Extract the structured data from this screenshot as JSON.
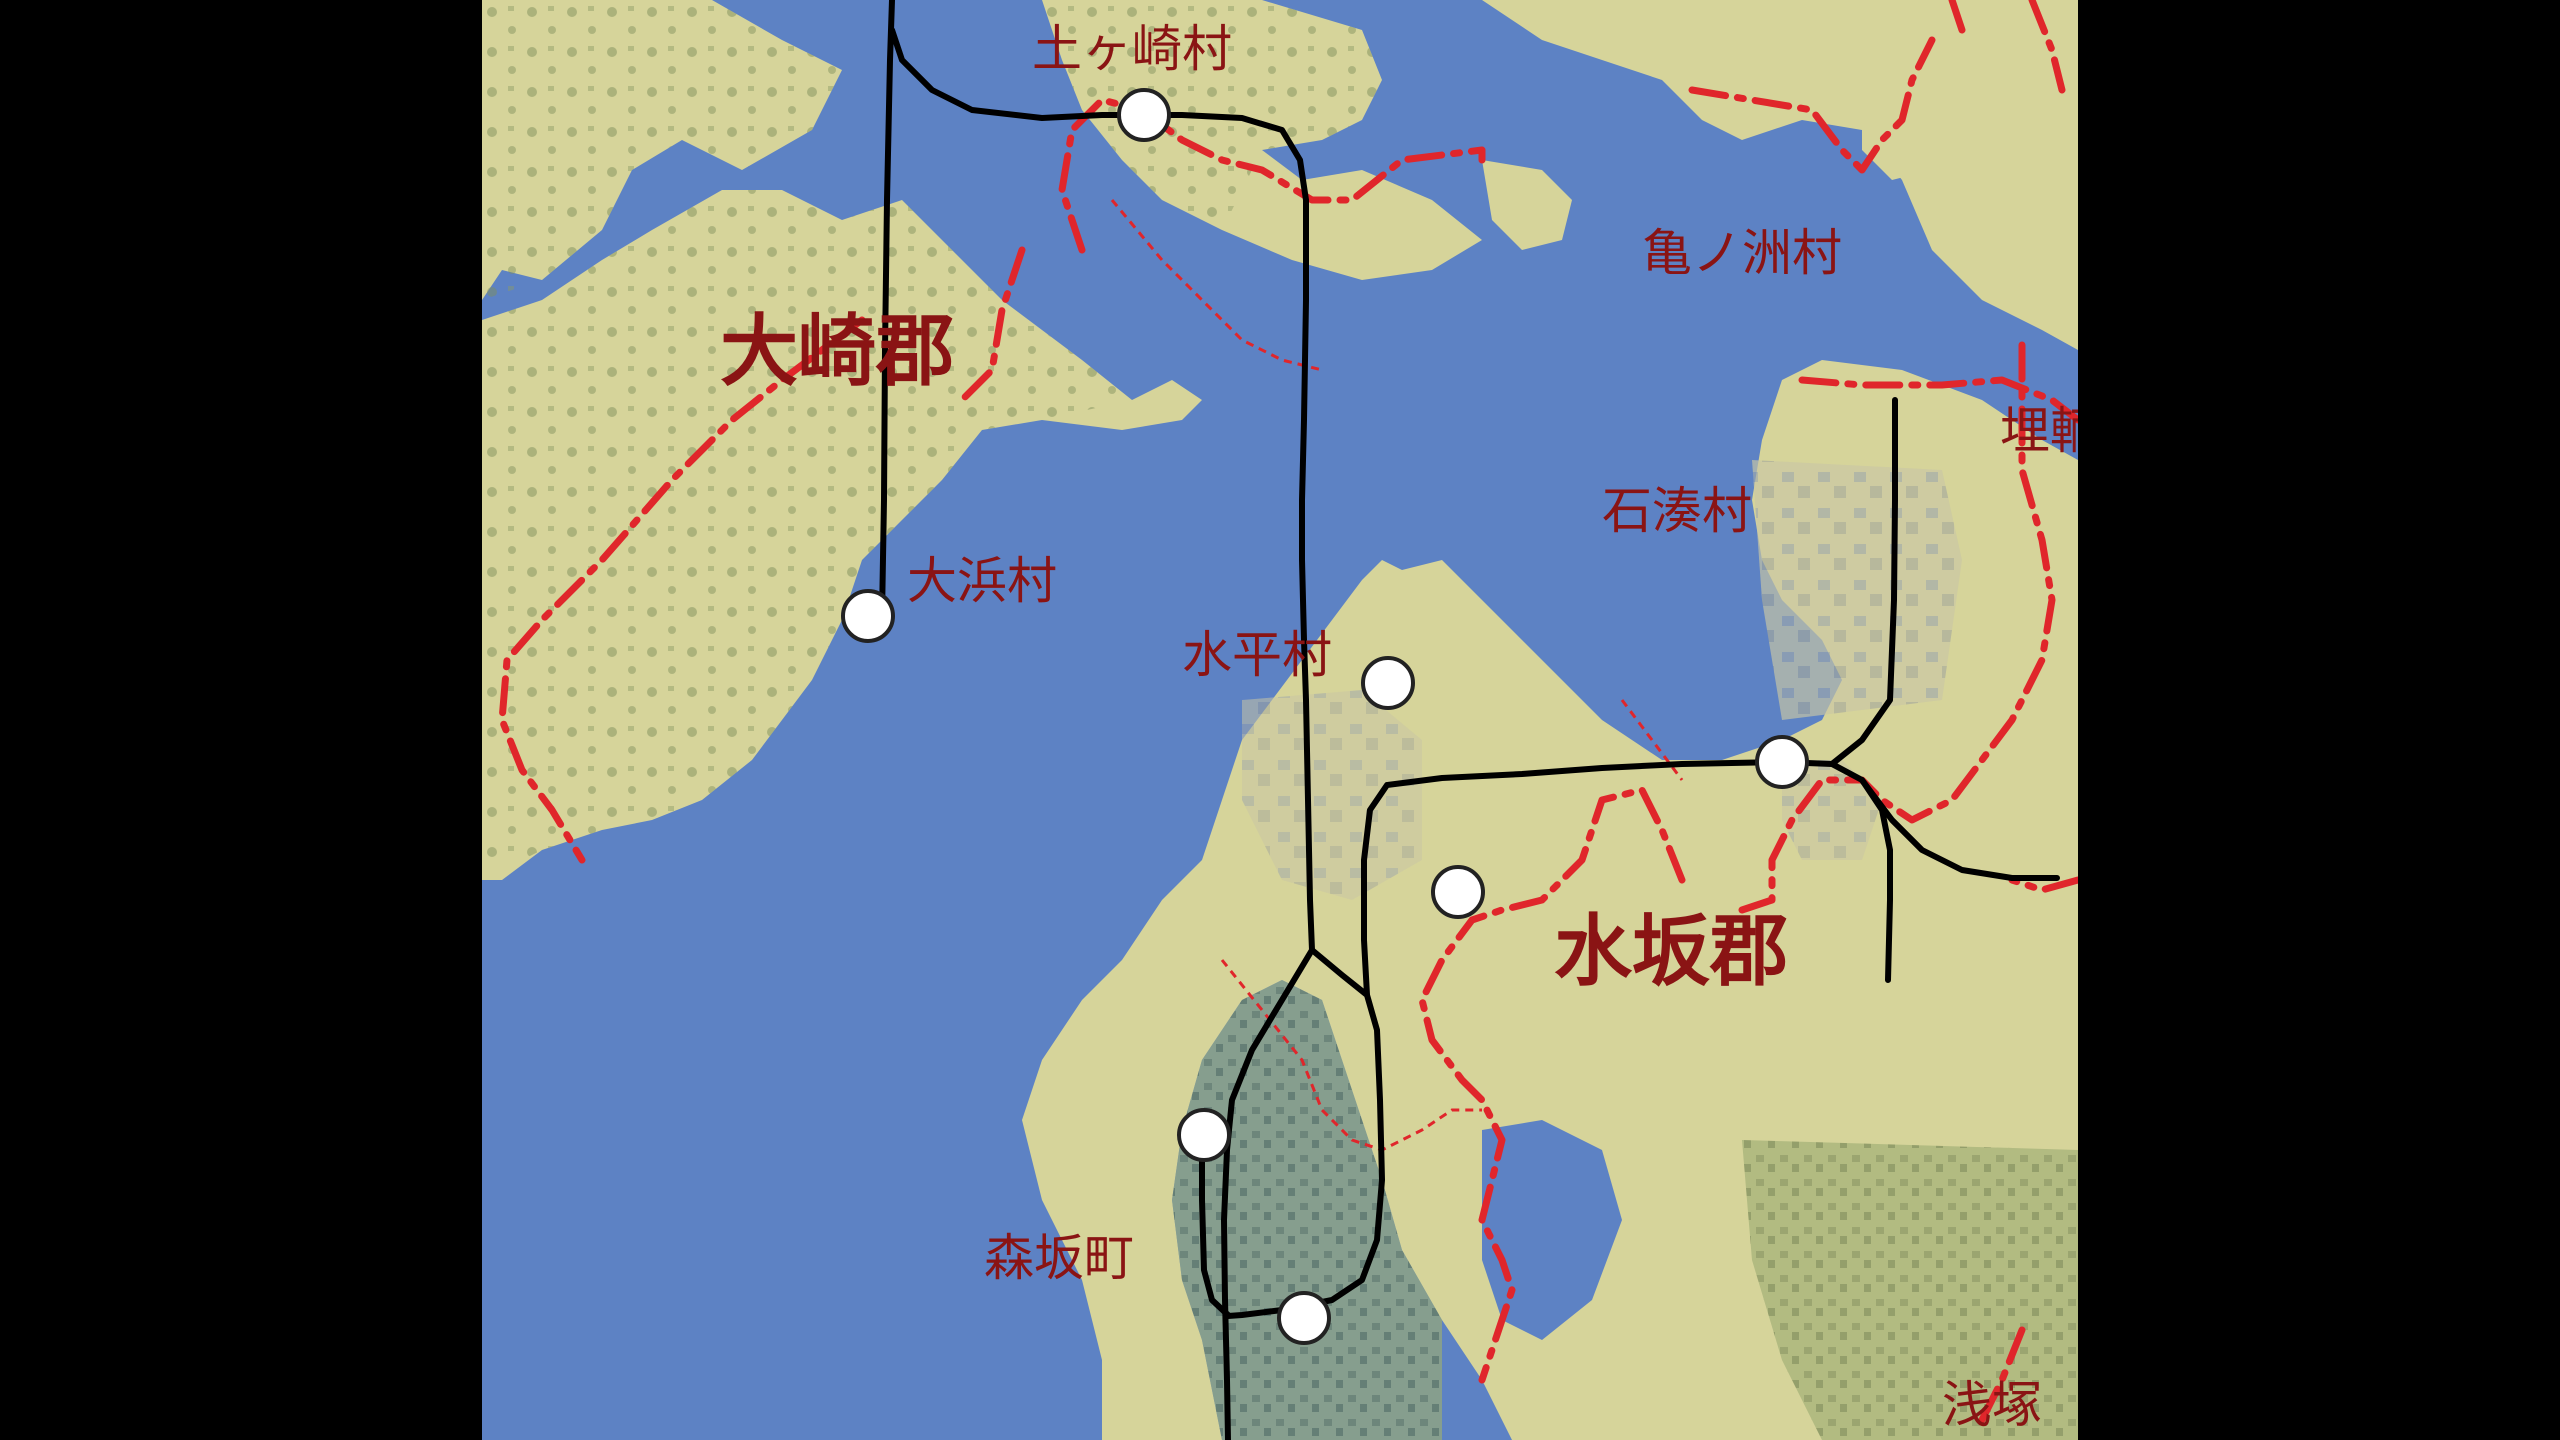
{
  "colors": {
    "water": "#5d82c4",
    "water_deep": "#4f73b8",
    "land": "#d6d49a",
    "land_green": "#b9c58f",
    "forest": "#7f8f5c",
    "town": "#a7a59a",
    "rail": "#000000",
    "boundary": "#e0262b",
    "label": "#8a1414",
    "station_fill": "#ffffff",
    "station_stroke": "#222222"
  },
  "labels": {
    "district_osaki": "大崎郡",
    "district_mizusaka": "水坂郡",
    "village_tsuchigasaki": "土ヶ崎村",
    "village_kamenosu": "亀ノ洲村",
    "village_ishiminato": "石湊村",
    "village_ohama": "大浜村",
    "village_suihei": "水平村",
    "town_morisaka": "森坂町",
    "partial_right": "埋輌",
    "partial_bottom": "浅塚"
  },
  "stations": [
    {
      "name": "tsuchigasaki-station"
    },
    {
      "name": "ohama-station"
    },
    {
      "name": "suihei-station"
    },
    {
      "name": "ishiminato-station"
    },
    {
      "name": "mizusaka-west-station"
    },
    {
      "name": "morisaka-north-station"
    },
    {
      "name": "morisaka-south-station"
    }
  ]
}
